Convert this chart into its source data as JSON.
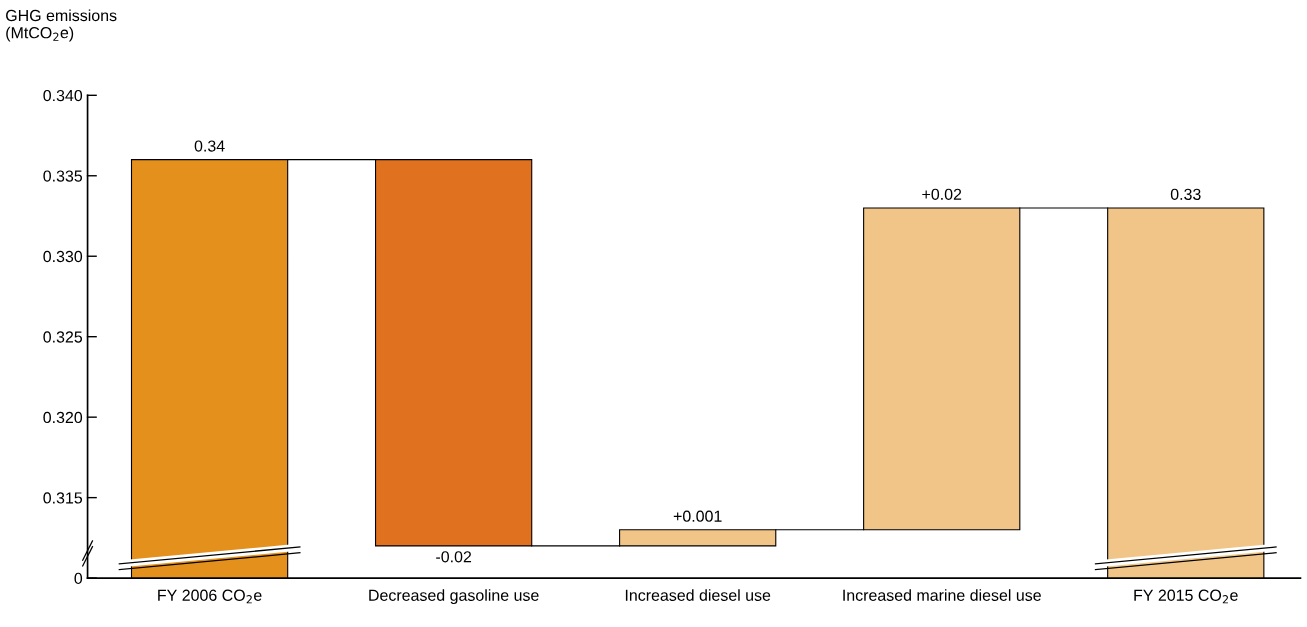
{
  "chart_data": {
    "type": "bar",
    "ylabel": "GHG emissions\n(MtCO$_{2}$e)",
    "categories": [
      "FY 2006 CO$_{2}$e",
      "Decreased gasoline use",
      "Increased diesel use",
      "Increased marine diesel use",
      "FY 2015 CO$_{2}$e"
    ],
    "values": [
      0.336,
      -0.024,
      0.001,
      0.02,
      0.333
    ],
    "base": [
      null,
      0.336,
      0.312,
      0.313,
      null
    ],
    "colors": [
      "#e4901c",
      "#e0711f",
      "#f0c587",
      "#f0c587",
      "#f0c587"
    ],
    "value_labels": [
      "0.34",
      "-0.02",
      "+0.001",
      "+0.02",
      "0.33"
    ],
    "ylim": [
      0.31,
      0.34
    ],
    "yticks": [
      {
        "value": 0.31,
        "label": "0"
      },
      0.315,
      {
        "value": 0.32,
        "label": "0.320"
      },
      0.325,
      {
        "value": 0.33,
        "label": "0.330"
      },
      0.335,
      {
        "value": 0.34,
        "label": "0.340"
      }
    ],
    "grid": false
  }
}
